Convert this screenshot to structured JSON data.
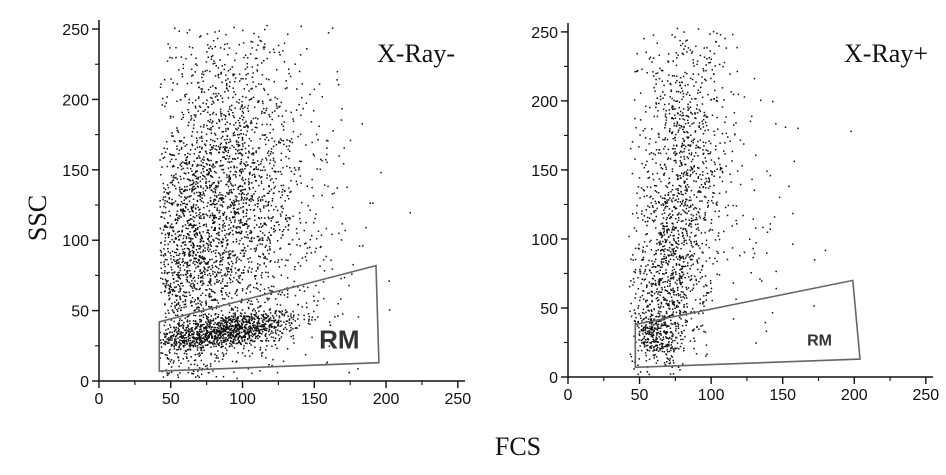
{
  "chart_data": {
    "type": "scatter",
    "ylabel": "SSC",
    "xlabel": "FCS",
    "colors": {
      "points": "#111111",
      "gate": "#666666",
      "axis": "#111111"
    },
    "panels": [
      {
        "label": "X-Ray-",
        "xlim": [
          0,
          255
        ],
        "ylim": [
          0,
          255
        ],
        "xticks": [
          0,
          50,
          100,
          150,
          200,
          250
        ],
        "yticks": [
          0,
          50,
          100,
          150,
          200,
          250
        ],
        "gate": {
          "label": "RM",
          "polygon": [
            [
              42,
              7
            ],
            [
              195,
              13
            ],
            [
              193,
              82
            ],
            [
              42,
              42
            ]
          ]
        },
        "populations": [
          {
            "n": 1100,
            "x_mean": 88,
            "x_sd": 26,
            "y_mean": 36,
            "y_sd": 7,
            "corr": 0.55
          },
          {
            "n": 2600,
            "x_mean": 85,
            "x_sd": 28,
            "y_mean": 125,
            "y_sd": 62,
            "corr": 0.1
          },
          {
            "n": 500,
            "x_mean": 60,
            "x_sd": 10,
            "y_mean": 70,
            "y_sd": 40,
            "corr": 0.0
          },
          {
            "n": 180,
            "x_mean": 135,
            "x_sd": 35,
            "y_mean": 110,
            "y_sd": 55,
            "corr": 0.0
          }
        ]
      },
      {
        "label": "X-Ray+",
        "xlim": [
          0,
          255
        ],
        "ylim": [
          0,
          255
        ],
        "xticks": [
          0,
          50,
          100,
          150,
          200,
          250
        ],
        "yticks": [
          0,
          50,
          100,
          150,
          200,
          250
        ],
        "gate": {
          "label": "RM",
          "polygon": [
            [
              47,
              7
            ],
            [
              204,
              13
            ],
            [
              199,
              70
            ],
            [
              47,
              38
            ]
          ]
        },
        "populations": [
          {
            "n": 900,
            "x_mean": 70,
            "x_sd": 14,
            "y_mean": 75,
            "y_sd": 38,
            "corr": 0.2
          },
          {
            "n": 700,
            "x_mean": 80,
            "x_sd": 16,
            "y_mean": 170,
            "y_sd": 45,
            "corr": 0.0
          },
          {
            "n": 250,
            "x_mean": 62,
            "x_sd": 8,
            "y_mean": 30,
            "y_sd": 10,
            "corr": 0.0
          },
          {
            "n": 110,
            "x_mean": 118,
            "x_sd": 25,
            "y_mean": 140,
            "y_sd": 55,
            "corr": 0.0
          }
        ]
      }
    ]
  }
}
